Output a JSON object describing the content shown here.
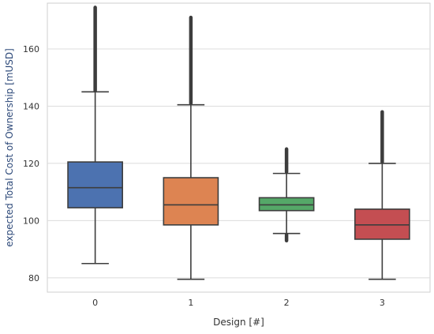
{
  "chart_data": {
    "type": "boxplot",
    "xlabel": "Design [#]",
    "ylabel": "expected Total Cost of Ownership [mUSD]",
    "ylim": [
      75,
      176
    ],
    "yticks": [
      80,
      100,
      120,
      140,
      160
    ],
    "grid": true,
    "categories": [
      "0",
      "1",
      "2",
      "3"
    ],
    "boxes": [
      {
        "category": "0",
        "color": "#4c72b0",
        "whisker_low": 85,
        "q1": 104.5,
        "median": 111.5,
        "q3": 120.5,
        "whisker_high": 145,
        "outliers_high": [
          145.5,
          174.5
        ],
        "outliers_low": []
      },
      {
        "category": "1",
        "color": "#dd8452",
        "whisker_low": 79.5,
        "q1": 98.5,
        "median": 105.5,
        "q3": 115,
        "whisker_high": 140.5,
        "outliers_high": [
          141,
          171
        ],
        "outliers_low": []
      },
      {
        "category": "2",
        "color": "#55a868",
        "whisker_low": 95.5,
        "q1": 103.5,
        "median": 105.5,
        "q3": 108,
        "whisker_high": 116.5,
        "outliers_high": [
          117,
          125
        ],
        "outliers_low": [
          93,
          95
        ]
      },
      {
        "category": "3",
        "color": "#c44e52",
        "whisker_low": 79.5,
        "q1": 93.5,
        "median": 98.5,
        "q3": 104,
        "whisker_high": 120,
        "outliers_high": [
          120.5,
          138
        ],
        "outliers_low": []
      }
    ]
  }
}
